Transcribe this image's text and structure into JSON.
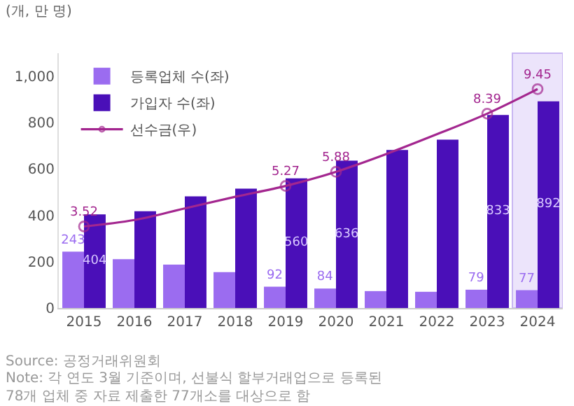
{
  "chart_data": {
    "type": "bar",
    "ylabel": "(개, 만 명)",
    "categories": [
      "2015",
      "2016",
      "2017",
      "2018",
      "2019",
      "2020",
      "2021",
      "2022",
      "2023",
      "2024"
    ],
    "series": [
      {
        "name": "등록업체 수(좌)",
        "color": "#9b6cf0",
        "values": [
          243,
          211,
          187,
          155,
          92,
          84,
          73,
          70,
          79,
          77
        ],
        "value_labels": [
          "243",
          null,
          null,
          null,
          "92",
          "84",
          null,
          null,
          "79",
          "77"
        ]
      },
      {
        "name": "가입자 수(좌)",
        "color": "#4a0fb8",
        "values": [
          404,
          418,
          482,
          515,
          560,
          636,
          682,
          727,
          833,
          892
        ],
        "value_labels": [
          "404",
          null,
          null,
          null,
          "560",
          "636",
          null,
          null,
          "833",
          "892"
        ]
      },
      {
        "name": "선수금(우)",
        "type": "line",
        "axis": "y2",
        "color": "#a3268f",
        "marker": "circle",
        "values": [
          3.52,
          3.8,
          4.3,
          4.8,
          5.27,
          5.88,
          6.65,
          7.5,
          8.39,
          9.45
        ],
        "value_labels": [
          "3.52",
          null,
          null,
          null,
          "5.27",
          "5.88",
          null,
          null,
          "8.39",
          "9.45"
        ]
      }
    ],
    "ylim": [
      0,
      1100
    ],
    "yticks": [
      0,
      {
        "value": 200,
        "label": "200"
      },
      {
        "value": 400,
        "label": "400"
      },
      {
        "value": 600,
        "label": "600"
      },
      {
        "value": 800,
        "label": "800"
      },
      {
        "value": 1000,
        "label": "1,000"
      }
    ],
    "y2lim": [
      0,
      11
    ],
    "bands": [
      {
        "axis": "x",
        "from": "2024",
        "to": "2024",
        "color": "#ece4fb"
      }
    ],
    "legend": "top left",
    "grid": false,
    "annotations": [
      "Source: 공정거래위원회",
      "Note: 각 연도 3월 기준이며, 선불식 할부거래업으로 등록된 78개 업체 중 자료 제출한 77개소를 대상으로 함"
    ]
  }
}
